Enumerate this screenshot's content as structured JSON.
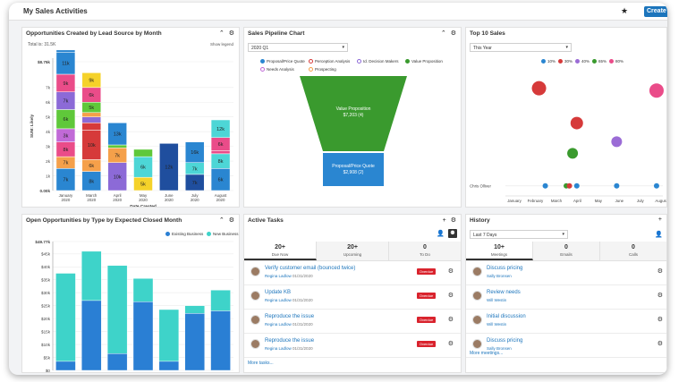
{
  "header": {
    "title": "My Sales Activities",
    "create_label": "Create"
  },
  "panels": {
    "lead_source": {
      "title": "Opportunities Created by Lead Source by Month",
      "total": "Total is: 31.5K",
      "show_legend": "Show legend"
    },
    "pipeline": {
      "title": "Sales Pipeline Chart",
      "period": "2020 Q1",
      "legend": [
        "Proposal/Price Quote",
        "Perception Analysis",
        "Id. Decision Makers",
        "Value Proposition",
        "Needs Analysis",
        "Prospecting"
      ]
    },
    "top10": {
      "title": "Top 10 Sales",
      "period": "This Year",
      "legend": [
        "10%",
        "30%",
        "40%",
        "65%",
        "80%"
      ],
      "y_label": "Chris Olliver"
    },
    "open_opps": {
      "title": "Open Opportunities by Type by Expected Closed Month",
      "legend": [
        "Existing Business",
        "New Business"
      ]
    },
    "tasks": {
      "title": "Active Tasks",
      "tabs": [
        {
          "num": "20+",
          "label": "Due Now"
        },
        {
          "num": "20+",
          "label": "Upcoming"
        },
        {
          "num": "0",
          "label": "To Do"
        }
      ],
      "rows": [
        {
          "title": "Verify customer email (bounced twice)",
          "user": "Regina Ladlow",
          "date": "01/31/2020",
          "status": "Overdue"
        },
        {
          "title": "Update KB",
          "user": "Regina Ladlow",
          "date": "01/31/2020",
          "status": "Overdue"
        },
        {
          "title": "Reproduce the issue",
          "user": "Regina Ladlow",
          "date": "01/31/2020",
          "status": "Overdue"
        },
        {
          "title": "Reproduce the issue",
          "user": "Regina Ladlow",
          "date": "01/31/2020",
          "status": "Overdue"
        }
      ],
      "more": "More tasks..."
    },
    "history": {
      "title": "History",
      "period": "Last 7 Days",
      "tabs": [
        {
          "num": "10+",
          "label": "Meetings"
        },
        {
          "num": "0",
          "label": "Emails"
        },
        {
          "num": "0",
          "label": "Calls"
        }
      ],
      "rows": [
        {
          "title": "Discuss pricing",
          "user": "Sally Bronsen"
        },
        {
          "title": "Review needs",
          "user": "Will Westin"
        },
        {
          "title": "Initial discussion",
          "user": "Will Westin"
        },
        {
          "title": "Discuss pricing",
          "user": "Sally Bronsen"
        }
      ],
      "more": "More meetings..."
    }
  },
  "chart_data": [
    {
      "type": "bar",
      "stacked": true,
      "title": "Opportunities Created by Lead Source by Month",
      "xlabel": "Date Created",
      "ylabel": "SUM: Likely",
      "ylim": [
        0,
        8750
      ],
      "y_ticks": [
        "0.00k",
        "1k",
        "2k",
        "3k",
        "4k",
        "5k",
        "6k",
        "7k",
        "$8.75k"
      ],
      "categories": [
        "January 2020",
        "March 2020",
        "April 2020",
        "May 2020",
        "June 2020",
        "July 2020",
        "August 2020"
      ],
      "category_lines": [
        [
          "January",
          "2020"
        ],
        [
          "March",
          "2020"
        ],
        [
          "April",
          "2020"
        ],
        [
          "May",
          "2020"
        ],
        [
          "June",
          "2020"
        ],
        [
          "July",
          "2020"
        ],
        [
          "August",
          "2020"
        ]
      ],
      "stacks": [
        [
          {
            "v": 1500,
            "c": "#2a86d1",
            "l": "7k"
          },
          {
            "v": 800,
            "c": "#f5a04a",
            "l": "7k"
          },
          {
            "v": 1000,
            "c": "#ea4c89",
            "l": "8k"
          },
          {
            "v": 900,
            "c": "#c16ad7",
            "l": "3k"
          },
          {
            "v": 1300,
            "c": "#5fc83a",
            "l": "6k"
          },
          {
            "v": 1200,
            "c": "#8c6ad7",
            "l": "7k"
          },
          {
            "v": 1200,
            "c": "#ea4c89",
            "l": "9k"
          },
          {
            "v": 1500,
            "c": "#2a86d1",
            "l": "11k"
          },
          {
            "v": 150,
            "c": "#2a86d1",
            "l": ""
          }
        ],
        [
          {
            "v": 1300,
            "c": "#2a86d1",
            "l": "8k"
          },
          {
            "v": 800,
            "c": "#f5a04a",
            "l": "6k"
          },
          {
            "v": 2000,
            "c": "#d63a3a",
            "l": "10k"
          },
          {
            "v": 500,
            "c": "#d63a3a",
            "l": ""
          },
          {
            "v": 400,
            "c": "#8c6ad7",
            "l": ""
          },
          {
            "v": 300,
            "c": "#f5a04a",
            "l": ""
          },
          {
            "v": 700,
            "c": "#5fc83a",
            "l": "5k"
          },
          {
            "v": 1000,
            "c": "#ea4c89",
            "l": "6k"
          },
          {
            "v": 1000,
            "c": "#f5d22a",
            "l": "9k"
          }
        ],
        [
          {
            "v": 1900,
            "c": "#8c6ad7",
            "l": "10k"
          },
          {
            "v": 1000,
            "c": "#f5a04a",
            "l": "7k"
          },
          {
            "v": 200,
            "c": "#5fc83a",
            "l": ""
          },
          {
            "v": 1500,
            "c": "#2a86d1",
            "l": "13k"
          }
        ],
        [
          {
            "v": 900,
            "c": "#f5d22a",
            "l": "5k"
          },
          {
            "v": 1400,
            "c": "#4dd6d6",
            "l": "6k"
          },
          {
            "v": 500,
            "c": "#5fc83a",
            "l": ""
          }
        ],
        [
          {
            "v": 3200,
            "c": "#1f4e9e",
            "l": "12k"
          }
        ],
        [
          {
            "v": 1100,
            "c": "#1f4e9e",
            "l": "7k"
          },
          {
            "v": 800,
            "c": "#4dd6d6",
            "l": "7k"
          },
          {
            "v": 1400,
            "c": "#2a86d1",
            "l": "16k"
          }
        ],
        [
          {
            "v": 1500,
            "c": "#2a86d1",
            "l": "6k"
          },
          {
            "v": 1000,
            "c": "#4dd6d6",
            "l": "8k"
          },
          {
            "v": 200,
            "c": "#ea4c89",
            "l": ""
          },
          {
            "v": 900,
            "c": "#ea4c89",
            "l": "6k"
          },
          {
            "v": 1200,
            "c": "#4dd6d6",
            "l": "12k"
          }
        ]
      ]
    },
    {
      "type": "funnel",
      "title": "Sales Pipeline Chart",
      "stages": [
        {
          "name": "Value Proposition",
          "value": "$7,203 (4)",
          "color": "#3a9a2e"
        },
        {
          "name": "Proposal/Price Quote",
          "value": "$2,908 (2)",
          "color": "#2a86d1"
        }
      ]
    },
    {
      "type": "scatter",
      "title": "Top 10 Sales",
      "categories": [
        "January",
        "February",
        "March",
        "April",
        "May",
        "June",
        "July",
        "August"
      ],
      "points": [
        {
          "x": 2.3,
          "y": 0.88,
          "r": 8,
          "c": "#d63a3a"
        },
        {
          "x": 7.9,
          "y": 0.86,
          "r": 8,
          "c": "#ea4c89"
        },
        {
          "x": 4.1,
          "y": 0.58,
          "r": 7,
          "c": "#d63a3a"
        },
        {
          "x": 6.0,
          "y": 0.42,
          "r": 6,
          "c": "#9b6cd6"
        },
        {
          "x": 3.9,
          "y": 0.32,
          "r": 6,
          "c": "#3a9a2e"
        },
        {
          "x": 2.6,
          "y": 0.04,
          "r": 3,
          "c": "#2a86d1"
        },
        {
          "x": 3.6,
          "y": 0.04,
          "r": 3,
          "c": "#3a9a2e"
        },
        {
          "x": 3.75,
          "y": 0.04,
          "r": 3,
          "c": "#d63a3a"
        },
        {
          "x": 4.1,
          "y": 0.04,
          "r": 3,
          "c": "#2a86d1"
        },
        {
          "x": 6.0,
          "y": 0.04,
          "r": 3,
          "c": "#2a86d1"
        },
        {
          "x": 7.9,
          "y": 0.04,
          "r": 3,
          "c": "#2a86d1"
        }
      ],
      "legend_colors": [
        "#2a86d1",
        "#d63a3a",
        "#9b6cd6",
        "#3a9a2e",
        "#ea4c89"
      ]
    },
    {
      "type": "bar",
      "stacked": true,
      "title": "Open Opportunities by Type by Expected Closed Month",
      "ylim": [
        0,
        49770
      ],
      "y_ticks": [
        "$0",
        "$5k",
        "$10k",
        "$15k",
        "$20k",
        "$25k",
        "$30k",
        "$35k",
        "$40k",
        "$45k",
        "$49.77k"
      ],
      "series": [
        {
          "name": "Existing Business",
          "color": "#2a7fd4",
          "values": [
            3500,
            27000,
            6500,
            26500,
            3500,
            22000,
            23000
          ]
        },
        {
          "name": "New Business",
          "color": "#3ed3c9",
          "values": [
            34000,
            19000,
            34000,
            9000,
            20000,
            3000,
            8000
          ]
        }
      ]
    }
  ]
}
